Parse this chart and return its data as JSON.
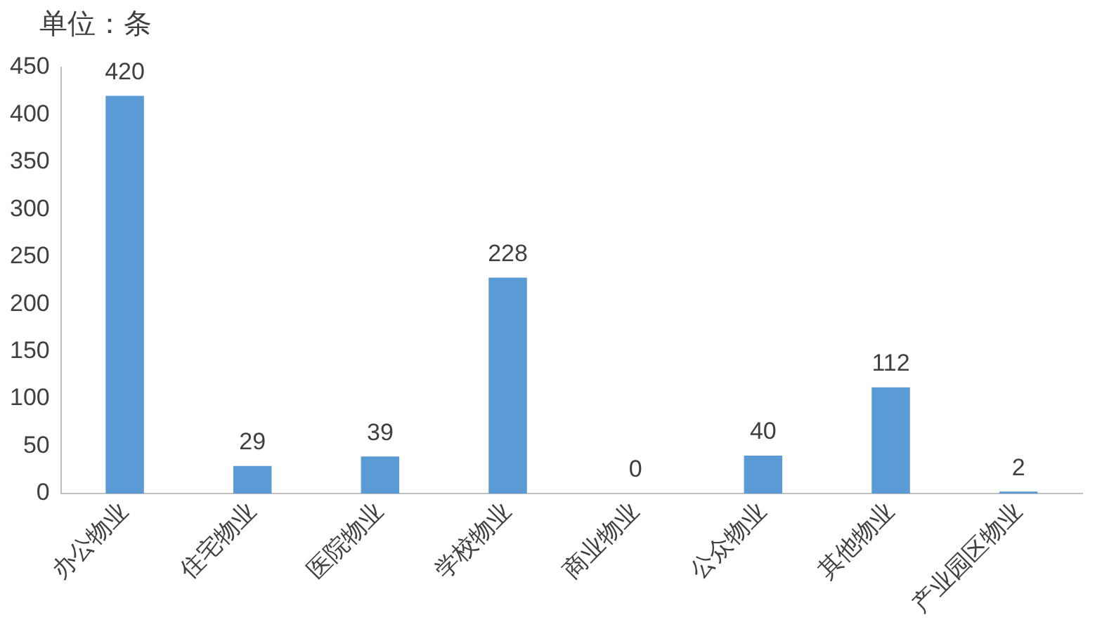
{
  "chart_data": {
    "type": "bar",
    "ylabel": "单位：条",
    "categories": [
      "办公物业",
      "住宅物业",
      "医院物业",
      "学校物业",
      "商业物业",
      "公众物业",
      "其他物业",
      "产业园区物业"
    ],
    "values": [
      420,
      29,
      39,
      228,
      0,
      40,
      112,
      2
    ],
    "color": "#5b9bd5",
    "ylim": [
      0,
      450
    ],
    "yticks": [
      0,
      50,
      100,
      150,
      200,
      250,
      300,
      350,
      400,
      450
    ],
    "grid": false,
    "data_labels": true
  }
}
